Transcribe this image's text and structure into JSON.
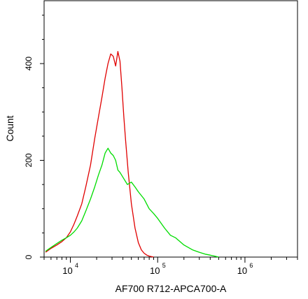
{
  "chart_data": {
    "type": "line",
    "title": "",
    "xlabel": "AF700 R712-APCA700-A",
    "ylabel": "Count",
    "x_scale": "log",
    "xlim": [
      5000,
      4000000
    ],
    "ylim": [
      0,
      530
    ],
    "grid": false,
    "legend": "none",
    "x_ticks": [
      {
        "value": 10000,
        "base": "10",
        "exp": "4"
      },
      {
        "value": 100000,
        "base": "10",
        "exp": "5"
      },
      {
        "value": 1000000,
        "base": "10",
        "exp": "6"
      }
    ],
    "y_ticks": [
      {
        "value": 0,
        "label": "0"
      },
      {
        "value": 200,
        "label": "200"
      },
      {
        "value": 400,
        "label": "400"
      }
    ],
    "series": [
      {
        "color": "#e00000",
        "x": [
          5200,
          6000,
          7000,
          8000,
          9000,
          10000,
          11000,
          12000,
          13500,
          15000,
          17000,
          19000,
          21000,
          23000,
          25000,
          27000,
          29000,
          31000,
          33000,
          35000,
          37000,
          39000,
          41000,
          43000,
          46000,
          50000,
          55000,
          60000,
          65000,
          70000,
          75000,
          80000,
          90000
        ],
        "y": [
          10,
          18,
          25,
          32,
          40,
          52,
          68,
          85,
          110,
          145,
          190,
          245,
          290,
          330,
          370,
          400,
          420,
          415,
          395,
          425,
          405,
          350,
          290,
          240,
          175,
          110,
          60,
          30,
          15,
          8,
          4,
          2,
          0
        ]
      },
      {
        "color": "#00dd00",
        "x": [
          5200,
          6000,
          7000,
          8000,
          9000,
          10000,
          11000,
          12000,
          13500,
          15000,
          17000,
          19000,
          21000,
          23000,
          25000,
          27000,
          29000,
          31000,
          33000,
          35000,
          37000,
          40000,
          45000,
          50000,
          55000,
          60000,
          70000,
          80000,
          90000,
          100000,
          120000,
          140000,
          160000,
          200000,
          250000,
          300000,
          350000,
          400000,
          450000,
          500000
        ],
        "y": [
          12,
          20,
          28,
          35,
          40,
          45,
          52,
          60,
          75,
          95,
          120,
          145,
          170,
          190,
          215,
          225,
          215,
          210,
          200,
          180,
          175,
          165,
          150,
          155,
          145,
          135,
          120,
          100,
          90,
          80,
          60,
          45,
          40,
          25,
          15,
          10,
          6,
          4,
          2,
          0
        ]
      }
    ]
  }
}
